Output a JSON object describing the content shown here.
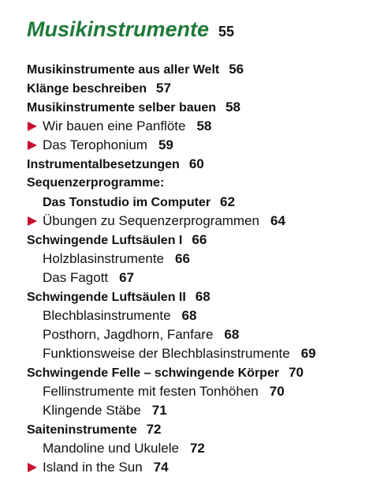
{
  "title": {
    "text": "Musikinstrumente",
    "page": 55
  },
  "entries": [
    {
      "text": "Musikinstrumente aus aller Welt",
      "page": 56
    },
    {
      "text": "Klänge beschreiben",
      "page": 57
    },
    {
      "text": "Musikinstrumente selber bauen",
      "page": 58
    },
    {
      "text": "Wir bauen eine Panflöte",
      "page": 58
    },
    {
      "text": "Das Terophonium",
      "page": 59
    },
    {
      "text": "Instrumentalbesetzungen",
      "page": 60
    },
    {
      "text": "Sequenzerprogramme:"
    },
    {
      "text": "Das Tonstudio im Computer",
      "page": 62
    },
    {
      "text": "Übungen zu Sequenzerprogrammen",
      "page": 64
    },
    {
      "text": "Schwingende Luftsäulen I",
      "page": 66
    },
    {
      "text": "Holzblasinstrumente",
      "page": 66
    },
    {
      "text": "Das Fagott",
      "page": 67
    },
    {
      "text": "Schwingende Luftsäulen II",
      "page": 68
    },
    {
      "text": "Blechblasinstrumente",
      "page": 68
    },
    {
      "text": "Posthorn, Jagdhorn, Fanfare",
      "page": 68
    },
    {
      "text": "Funktionsweise der Blechblasinstrumente",
      "page": 69
    },
    {
      "text": "Schwingende Felle – schwingende Körper",
      "page": 70
    },
    {
      "text": "Fellinstrumente mit festen Tonhöhen",
      "page": 70
    },
    {
      "text": "Klingende Stäbe",
      "page": 71
    },
    {
      "text": "Saiteninstrumente",
      "page": 72
    },
    {
      "text": "Mandoline und Ukulele",
      "page": 72
    },
    {
      "text": "Island in the Sun",
      "page": 74
    }
  ]
}
